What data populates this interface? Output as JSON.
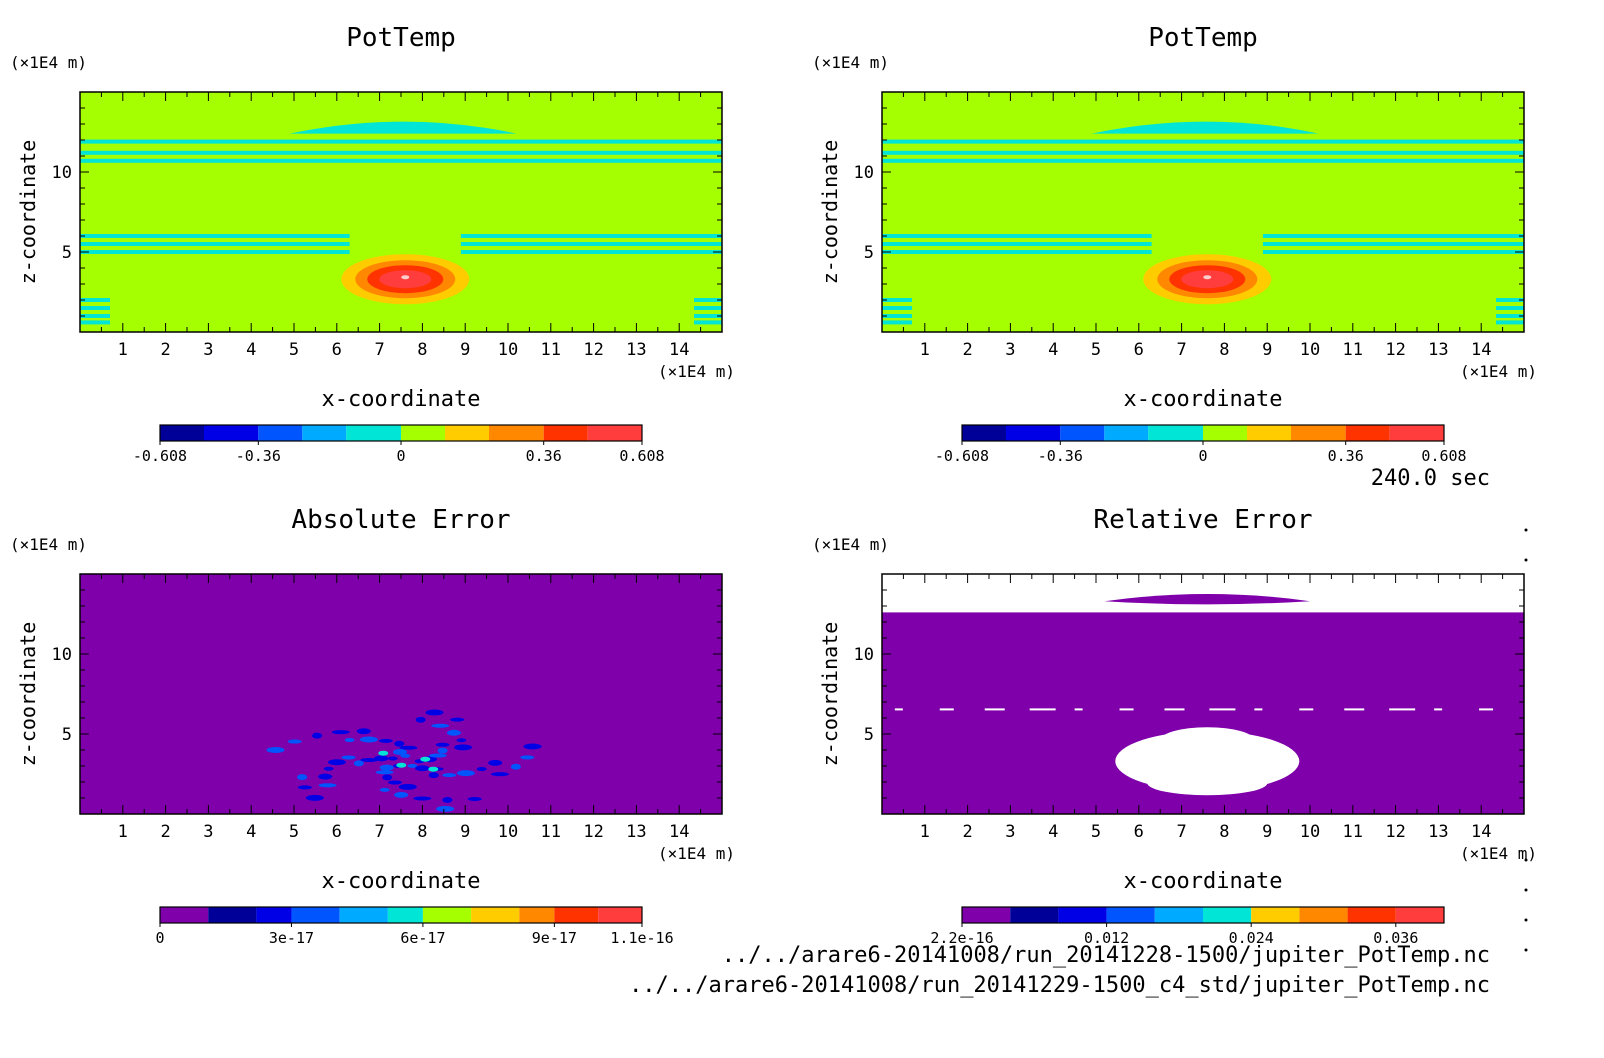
{
  "chart_data": [
    {
      "type": "heatmap",
      "title": "PotTemp",
      "xlabel": "x-coordinate",
      "ylabel": "z-coordinate",
      "x_unit": "(×1E4 m)",
      "y_unit": "(×1E4 m)",
      "xlim": [
        0,
        15
      ],
      "ylim": [
        0,
        15
      ],
      "xticks": [
        "1",
        "2",
        "3",
        "4",
        "5",
        "6",
        "7",
        "8",
        "9",
        "10",
        "11",
        "12",
        "13",
        "14"
      ],
      "yticks": [
        "5",
        "10"
      ],
      "colorbar": {
        "levels": [
          -0.608,
          -0.497,
          -0.36,
          -0.249,
          -0.138,
          0,
          0.111,
          0.222,
          0.36,
          0.471,
          0.608
        ],
        "tick_labels": [
          "-0.608",
          "-0.36",
          "0",
          "0.36",
          "0.608"
        ],
        "colors": [
          "#000099",
          "#0000e6",
          "#0055ff",
          "#00aaff",
          "#00e5d5",
          "#a6ff00",
          "#ffcc00",
          "#ff8800",
          "#ff3300",
          "#ff3d3d"
        ]
      },
      "field": {
        "background": "#a6ff00",
        "description_values": {
          "background_level": 0,
          "peak_anomaly": 0.608,
          "peak_center": [
            7.6,
            3.3
          ]
        },
        "cyan_layers_z": [
          11.9,
          11.2,
          10.7,
          6.0,
          5.5,
          5.0
        ],
        "warm_bubble": {
          "x": 7.6,
          "z": 3.3,
          "levels": [
            0.222,
            0.36,
            0.471,
            0.608
          ]
        }
      }
    },
    {
      "type": "heatmap",
      "title": "PotTemp",
      "xlabel": "x-coordinate",
      "ylabel": "z-coordinate",
      "x_unit": "(×1E4 m)",
      "y_unit": "(×1E4 m)",
      "xlim": [
        0,
        15
      ],
      "ylim": [
        0,
        15
      ],
      "xticks": [
        "1",
        "2",
        "3",
        "4",
        "5",
        "6",
        "7",
        "8",
        "9",
        "10",
        "11",
        "12",
        "13",
        "14"
      ],
      "yticks": [
        "5",
        "10"
      ],
      "colorbar": {
        "levels": [
          -0.608,
          -0.497,
          -0.36,
          -0.249,
          -0.138,
          0,
          0.111,
          0.222,
          0.36,
          0.471,
          0.608
        ],
        "tick_labels": [
          "-0.608",
          "-0.36",
          "0",
          "0.36",
          "0.608"
        ],
        "colors": [
          "#000099",
          "#0000e6",
          "#0055ff",
          "#00aaff",
          "#00e5d5",
          "#a6ff00",
          "#ffcc00",
          "#ff8800",
          "#ff3300",
          "#ff3d3d"
        ]
      },
      "field": {
        "background": "#a6ff00",
        "cyan_layers_z": [
          11.9,
          11.2,
          10.7,
          6.0,
          5.5,
          5.0
        ],
        "warm_bubble": {
          "x": 7.6,
          "z": 3.3,
          "levels": [
            0.222,
            0.36,
            0.471,
            0.608
          ]
        }
      }
    },
    {
      "type": "heatmap",
      "title": "Absolute Error",
      "xlabel": "x-coordinate",
      "ylabel": "z-coordinate",
      "x_unit": "(×1E4 m)",
      "y_unit": "(×1E4 m)",
      "xlim": [
        0,
        15
      ],
      "ylim": [
        0,
        15
      ],
      "xticks": [
        "1",
        "2",
        "3",
        "4",
        "5",
        "6",
        "7",
        "8",
        "9",
        "10",
        "11",
        "12",
        "13",
        "14"
      ],
      "yticks": [
        "5",
        "10"
      ],
      "colorbar": {
        "levels": [
          0,
          1.1e-17,
          2.2e-17,
          3e-17,
          4.1e-17,
          5.2e-17,
          6e-17,
          7.1e-17,
          8.2e-17,
          9e-17,
          1e-16,
          1.1e-16
        ],
        "tick_labels": [
          "0",
          "3e-17",
          "6e-17",
          "9e-17",
          "1.1e-16"
        ],
        "colors": [
          "#7f00aa",
          "#000099",
          "#0000e6",
          "#0055ff",
          "#00aaff",
          "#00e5d5",
          "#a6ff00",
          "#ffcc00",
          "#ff8800",
          "#ff3300",
          "#ff3d3d"
        ]
      },
      "field": {
        "background": "#7f00aa",
        "error_patch": {
          "x": 7.6,
          "z": 3.3
        }
      }
    },
    {
      "type": "heatmap",
      "title": "Relative Error",
      "xlabel": "x-coordinate",
      "ylabel": "z-coordinate",
      "x_unit": "(×1E4 m)",
      "y_unit": "(×1E4 m)",
      "xlim": [
        0,
        15
      ],
      "ylim": [
        0,
        15
      ],
      "xticks": [
        "1",
        "2",
        "3",
        "4",
        "5",
        "6",
        "7",
        "8",
        "9",
        "10",
        "11",
        "12",
        "13",
        "14"
      ],
      "yticks": [
        "5",
        "10"
      ],
      "colorbar": {
        "levels": [
          2.2e-16,
          0.004,
          0.008,
          0.012,
          0.016,
          0.02,
          0.024,
          0.028,
          0.032,
          0.036,
          0.04
        ],
        "tick_labels": [
          "2.2e-16",
          "0.012",
          "0.024",
          "0.036"
        ],
        "colors": [
          "#7f00aa",
          "#000099",
          "#0000e6",
          "#0055ff",
          "#00aaff",
          "#00e5d5",
          "#ffcc00",
          "#ff8800",
          "#ff3300",
          "#ff3d3d"
        ]
      },
      "field": {
        "background": "#7f00aa",
        "undefined_regions": [
          "z > 12.5",
          "bubble near x=7.6, z=3.3"
        ]
      }
    }
  ],
  "time_label": "240.0 sec",
  "files": [
    "../../arare6-20141008/run_20141228-1500/jupiter_PotTemp.nc",
    "../../arare6-20141008/run_20141229-1500_c4_std/jupiter_PotTemp.nc"
  ]
}
